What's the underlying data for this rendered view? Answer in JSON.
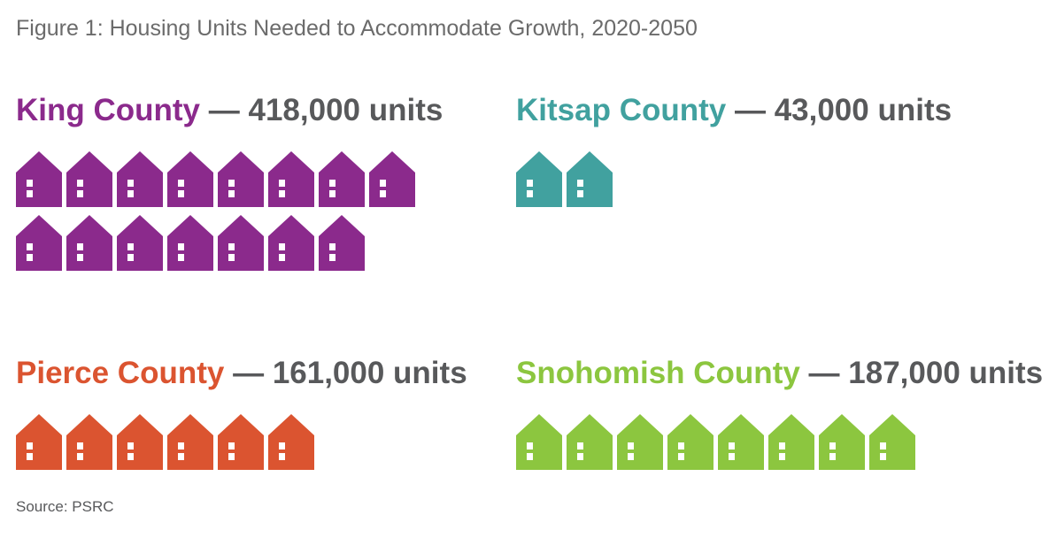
{
  "title": "Figure 1: Housing Units Needed to Accommodate Growth, 2020-2050",
  "source": "Source: PSRC",
  "chart_data": {
    "type": "pictograph",
    "title": "Figure 1: Housing Units Needed to Accommodate Growth, 2020-2050",
    "panels": [
      {
        "county": "King County",
        "separator": " — ",
        "value_label": "418,000 units",
        "value": 418000,
        "icon_count": 15,
        "color": "#8b2a8c"
      },
      {
        "county": "Kitsap County",
        "separator": " — ",
        "value_label": "43,000 units",
        "value": 43000,
        "icon_count": 2,
        "color": "#41a19f"
      },
      {
        "county": "Pierce County",
        "separator": " — ",
        "value_label": "161,000 units",
        "value": 161000,
        "icon_count": 6,
        "color": "#db5430"
      },
      {
        "county": "Snohomish County",
        "separator": " — ",
        "value_label": "187,000 units",
        "value": 187000,
        "icon_count": 8,
        "color": "#8cc63f"
      }
    ],
    "text_color": "#58595b"
  }
}
